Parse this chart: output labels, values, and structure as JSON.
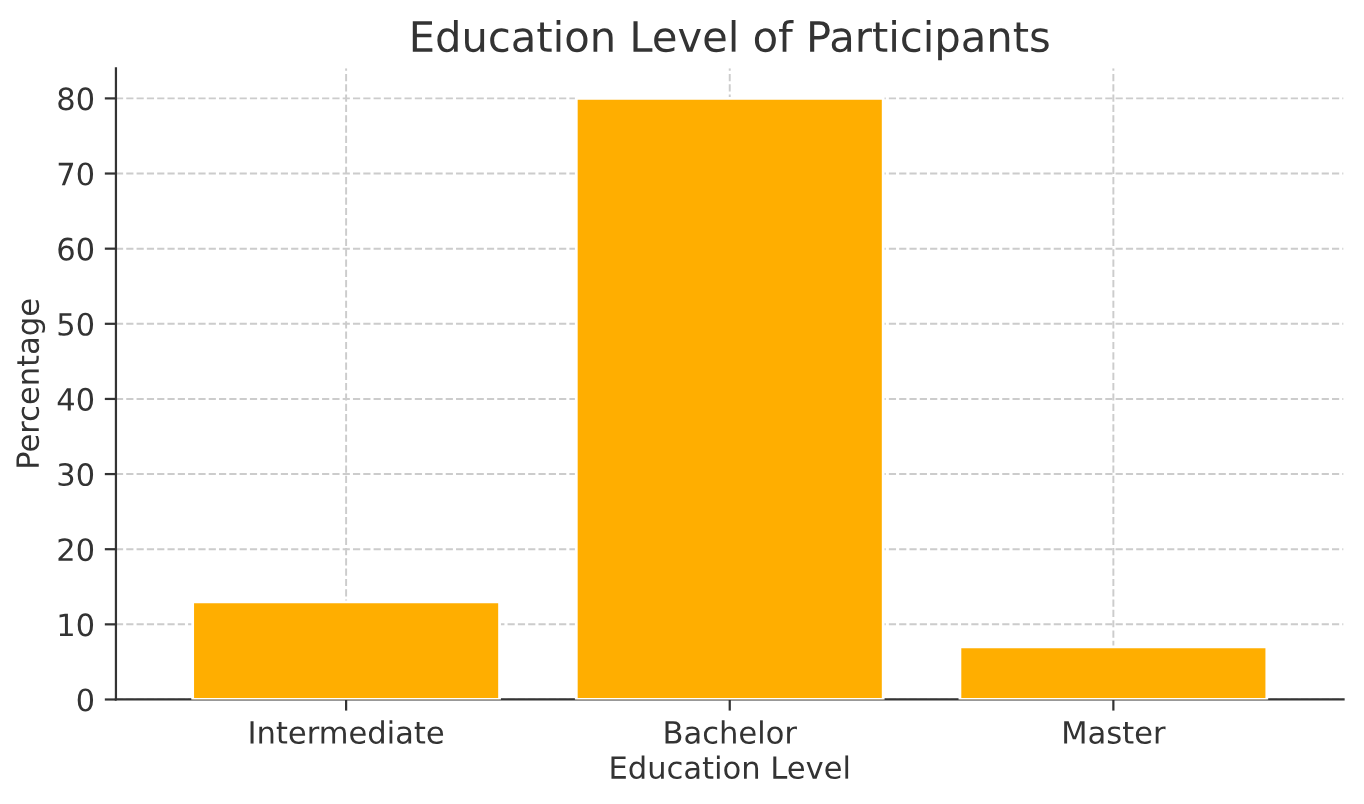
{
  "chart_data": {
    "type": "bar",
    "title": "Education Level of Participants",
    "xlabel": "Education Level",
    "ylabel": "Percentage",
    "categories": [
      "Intermediate",
      "Bachelor",
      "Master"
    ],
    "values": [
      13,
      80,
      7
    ],
    "color": "#ffae00",
    "ylim": [
      0,
      84
    ],
    "yticks": [
      0,
      10,
      20,
      30,
      40,
      50,
      60,
      70,
      80
    ],
    "grid": true
  }
}
